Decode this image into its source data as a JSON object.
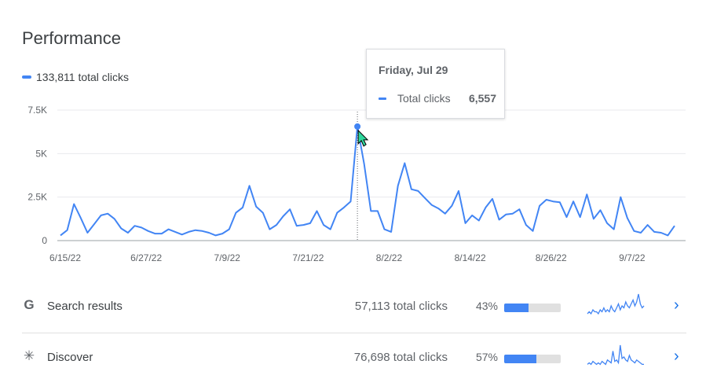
{
  "header": {
    "title": "Performance"
  },
  "legend": {
    "label": "133,811 total clicks",
    "color": "#4285f4"
  },
  "tooltip": {
    "date": "Friday, Jul 29",
    "series": "Total clicks",
    "value": "6,557"
  },
  "chart_data": {
    "type": "line",
    "y_ticks": [
      "0",
      "2.5K",
      "5K",
      "7.5K"
    ],
    "ylim": [
      0,
      7500
    ],
    "x_ticks": [
      "6/15/22",
      "6/27/22",
      "7/9/22",
      "7/21/22",
      "8/2/22",
      "8/14/22",
      "8/26/22",
      "9/7/22"
    ],
    "x_start": "6/15/22",
    "highlight_index": 44,
    "series": [
      {
        "color": "#4285f4",
        "values": [
          300,
          600,
          2100,
          1300,
          450,
          950,
          1450,
          1550,
          1250,
          700,
          450,
          850,
          750,
          550,
          400,
          400,
          650,
          500,
          350,
          500,
          600,
          550,
          450,
          300,
          400,
          650,
          1600,
          1900,
          3150,
          1950,
          1600,
          650,
          900,
          1400,
          1800,
          850,
          900,
          1000,
          1700,
          900,
          650,
          1600,
          1900,
          2250,
          6557,
          4400,
          1700,
          1700,
          650,
          500,
          3150,
          4450,
          2950,
          2850,
          2450,
          2050,
          1850,
          1550,
          2000,
          2850,
          1000,
          1450,
          1150,
          1900,
          2400,
          1200,
          1500,
          1550,
          1800,
          900,
          550,
          2000,
          2350,
          2250,
          2200,
          1350,
          2250,
          1350,
          2650,
          1250,
          1750,
          1000,
          650,
          2500,
          1300,
          550,
          450,
          900,
          500,
          450,
          300,
          850
        ]
      }
    ]
  },
  "rows": [
    {
      "icon": "google-g-icon",
      "glyph": "G",
      "label": "Search results",
      "clicks": "57,113 total clicks",
      "pct": "43%",
      "pct_value": 43,
      "spark": [
        2,
        3,
        2,
        4,
        3,
        3,
        2,
        4,
        3,
        5,
        3,
        4,
        3,
        6,
        4,
        3,
        5,
        7,
        4,
        6,
        5,
        8,
        6,
        5,
        7,
        9,
        6,
        8,
        12,
        7,
        5,
        6
      ]
    },
    {
      "icon": "discover-asterisk-icon",
      "glyph": "✳",
      "label": "Discover",
      "clicks": "76,698 total clicks",
      "pct": "57%",
      "pct_value": 57,
      "spark": [
        3,
        4,
        3,
        5,
        4,
        3,
        4,
        3,
        5,
        4,
        3,
        6,
        5,
        4,
        12,
        5,
        6,
        4,
        16,
        7,
        8,
        6,
        5,
        9,
        6,
        5,
        4,
        6,
        5,
        4,
        3,
        3
      ]
    }
  ]
}
